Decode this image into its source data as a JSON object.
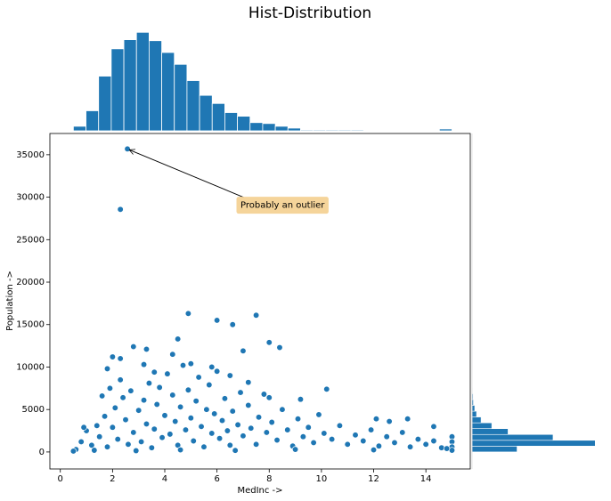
{
  "chart_data": [
    {
      "type": "scatter",
      "title": "Hist-Distribution",
      "x_label": "MedInc  ->",
      "y_label": "Population  ->",
      "color": "#1f77b4",
      "xlim": [
        -0.4,
        15.7
      ],
      "ylim": [
        -2000,
        37500
      ],
      "xticks": [
        0,
        2,
        4,
        6,
        8,
        10,
        12,
        14
      ],
      "yticks": [
        0,
        5000,
        10000,
        15000,
        20000,
        25000,
        30000,
        35000
      ],
      "annotation": {
        "text": "Probably an outlier",
        "xy": [
          2.57,
          35682
        ],
        "xytext": [
          6.9,
          28000
        ]
      },
      "x": [
        2.57,
        2.3,
        4.9,
        6.0,
        6.6,
        7.5,
        8.0,
        8.4,
        7.0,
        4.5,
        3.3,
        2.8,
        2.0,
        2.3,
        1.8,
        10.2,
        9.2,
        13.3,
        12.6,
        12.1,
        14.3,
        15.0,
        15.0,
        15.0,
        15.0,
        0.6,
        0.8,
        1.0,
        1.2,
        1.4,
        1.5,
        1.7,
        1.8,
        2.0,
        2.1,
        2.2,
        2.4,
        2.5,
        2.6,
        2.7,
        2.8,
        3.0,
        3.1,
        3.2,
        3.3,
        3.4,
        3.5,
        3.6,
        3.7,
        3.8,
        3.9,
        4.0,
        4.1,
        4.2,
        4.3,
        4.4,
        4.5,
        4.6,
        4.7,
        4.8,
        4.9,
        5.0,
        5.1,
        5.2,
        5.3,
        5.4,
        5.5,
        5.6,
        5.7,
        5.8,
        5.9,
        6.0,
        6.1,
        6.2,
        6.3,
        6.4,
        6.5,
        6.6,
        6.8,
        6.9,
        7.0,
        7.2,
        7.3,
        7.5,
        7.6,
        7.8,
        7.9,
        8.1,
        8.3,
        8.5,
        8.7,
        8.9,
        9.1,
        9.3,
        9.5,
        9.7,
        9.9,
        10.1,
        10.4,
        10.7,
        11.0,
        11.3,
        11.6,
        11.9,
        12.2,
        12.5,
        12.8,
        13.1,
        13.4,
        13.7,
        14.0,
        14.3,
        14.6,
        1.9,
        2.3,
        3.6,
        5.0,
        5.8,
        6.5,
        7.2,
        8.0,
        3.2,
        4.3,
        1.6,
        0.9,
        0.5,
        1.3,
        2.9,
        4.6,
        6.7,
        9.0,
        12.0,
        14.8
      ],
      "y": [
        35682,
        28566,
        16300,
        15500,
        15000,
        16100,
        12900,
        12300,
        11900,
        13300,
        12100,
        12400,
        11200,
        11000,
        9800,
        7400,
        6200,
        3900,
        3600,
        3900,
        3000,
        1800,
        1200,
        600,
        200,
        300,
        1200,
        2500,
        800,
        3100,
        1800,
        4200,
        600,
        2900,
        5200,
        1500,
        6400,
        3800,
        900,
        7200,
        2300,
        4900,
        1200,
        6100,
        3300,
        8100,
        500,
        2700,
        5600,
        7600,
        1700,
        4300,
        9200,
        2100,
        6700,
        3600,
        800,
        5300,
        10200,
        2600,
        7300,
        4000,
        1300,
        6000,
        8800,
        3000,
        600,
        5000,
        7900,
        2200,
        4500,
        9500,
        1600,
        3700,
        6300,
        2500,
        800,
        4800,
        3200,
        7000,
        1900,
        5500,
        2800,
        900,
        4100,
        6800,
        2300,
        3500,
        1400,
        5000,
        2600,
        700,
        3900,
        1800,
        2900,
        1100,
        4400,
        2200,
        1500,
        3100,
        900,
        2000,
        1300,
        2600,
        700,
        1800,
        1100,
        2300,
        600,
        1500,
        900,
        1300,
        500,
        7500,
        8500,
        9400,
        10400,
        10000,
        9000,
        8200,
        6400,
        10300,
        11500,
        6600,
        2900,
        100,
        200,
        150,
        250,
        180,
        300,
        250,
        400
      ]
    },
    {
      "type": "histogram",
      "color": "#1f77b4",
      "ylim": [
        0,
        2150
      ],
      "bins": [
        0.4999,
        0.9833,
        1.4666,
        1.95,
        2.4333,
        2.9166,
        3.4,
        3.8833,
        4.3666,
        4.85,
        5.3333,
        5.8166,
        6.3,
        6.7833,
        7.2666,
        7.75,
        8.2333,
        8.7166,
        9.2,
        9.6833,
        10.1666,
        10.65,
        11.1333,
        11.6166,
        12.1,
        12.5833,
        13.0666,
        13.55,
        14.0333,
        14.5166,
        15.0001
      ],
      "counts": [
        92,
        407,
        1110,
        1665,
        1850,
        2000,
        1830,
        1590,
        1350,
        1020,
        720,
        555,
        370,
        296,
        167,
        148,
        92,
        55,
        18,
        18,
        18,
        18,
        18,
        5,
        5,
        5,
        5,
        5,
        5,
        37
      ]
    },
    {
      "type": "histogram",
      "orientation": "horizontal",
      "color": "#1f77b4",
      "xlim": [
        0,
        8800
      ],
      "bins": [
        3,
        689.1,
        1375.2,
        2061.3,
        2747.4,
        3433.5,
        4119.6,
        4805.7,
        5491.8,
        6177.9,
        6864,
        7550.1,
        8236.2,
        8922.3,
        9608.4,
        10294.5,
        10980.6,
        11666.7,
        12352.8,
        13038.9,
        13725,
        14411.1,
        15097.2,
        15783.3,
        16469.4,
        17155.5,
        17841.6,
        18527.7,
        19213.8,
        19899.9,
        20586,
        21272.1,
        21958.2,
        22644.3,
        23330.4,
        24016.5,
        24702.6,
        25388.7,
        26074.8,
        26760.9,
        27447,
        28133.1,
        28819.2,
        29505.3,
        30191.4,
        30877.5,
        31563.6,
        32249.7,
        32935.8,
        33621.9,
        34308,
        34994.1,
        35682
      ],
      "counts": [
        2850,
        7800,
        5130,
        2280,
        1250,
        570,
        285,
        170,
        85,
        60,
        30,
        20,
        15,
        10,
        8,
        6,
        5,
        4,
        3,
        2,
        2,
        1,
        2,
        1,
        0,
        0,
        0,
        0,
        0,
        0,
        0,
        0,
        0,
        0,
        0,
        0,
        0,
        0,
        0,
        0,
        0,
        1,
        0,
        0,
        0,
        0,
        0,
        0,
        0,
        0,
        0,
        1
      ]
    }
  ]
}
